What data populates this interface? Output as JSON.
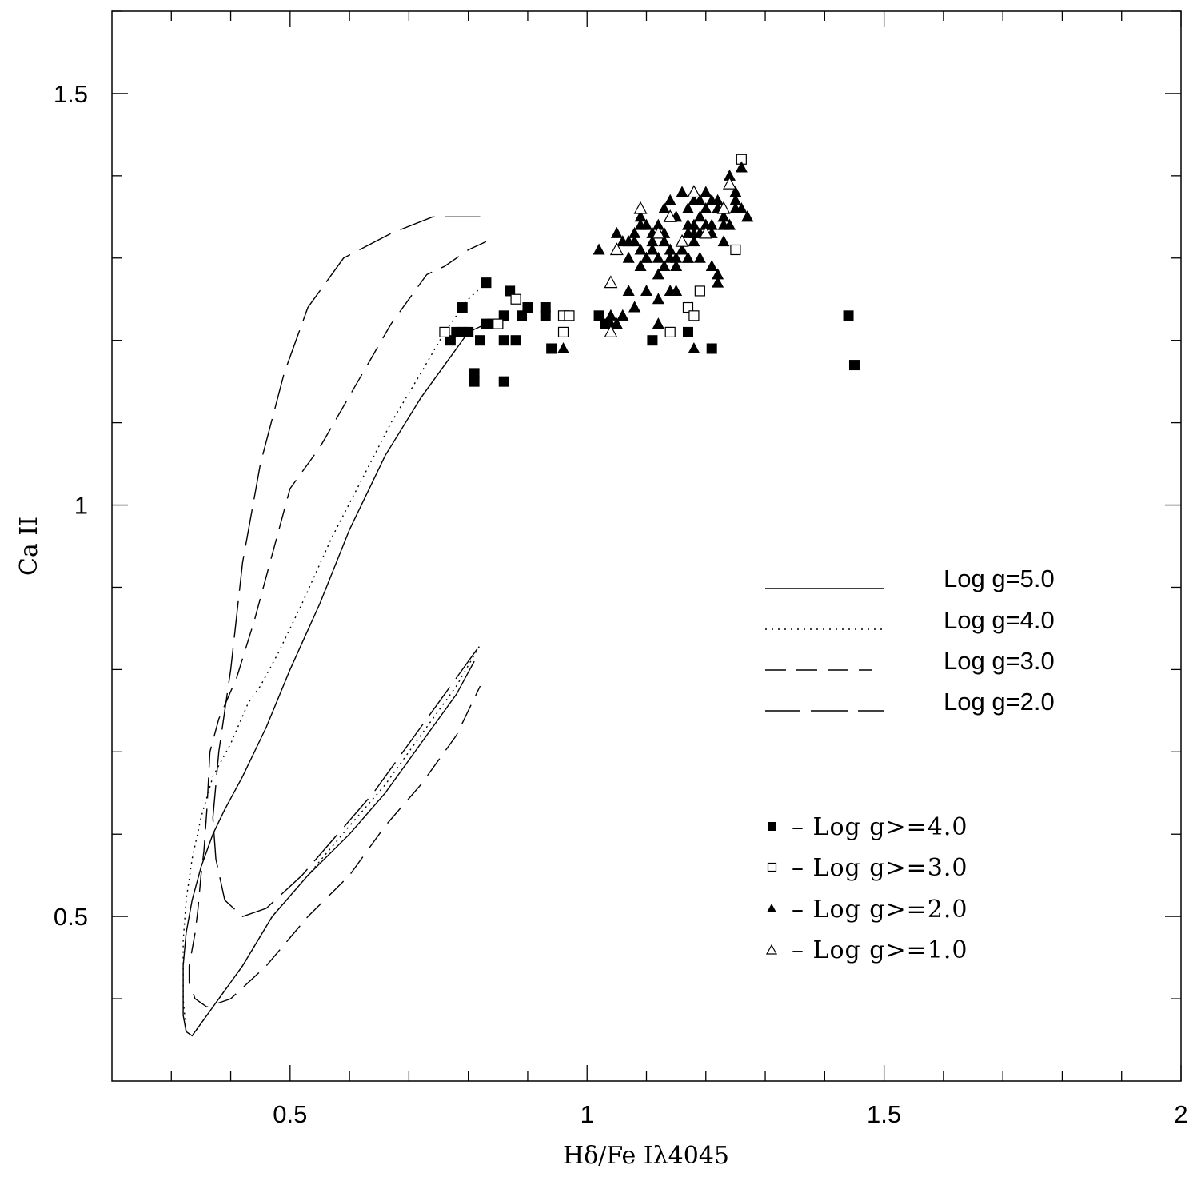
{
  "chart_data": {
    "type": "scatter",
    "xlabel": "Hδ/Fe Iλ4045",
    "ylabel": "Ca II",
    "xlim": [
      0.2,
      2.0
    ],
    "ylim": [
      0.3,
      1.6
    ],
    "x_ticks": [
      0.5,
      1,
      1.5,
      2
    ],
    "x_tick_labels": [
      "0.5",
      "1",
      "1.5",
      "2"
    ],
    "y_ticks": [
      0.5,
      1,
      1.5
    ],
    "y_tick_labels": [
      "0.5",
      "1",
      "1.5"
    ],
    "grid": false,
    "line_legend": [
      {
        "label": "Log g=5.0",
        "dash": "solid"
      },
      {
        "label": "Log g=4.0",
        "dash": "dotted"
      },
      {
        "label": "Log g=3.0",
        "dash": "dashed"
      },
      {
        "label": "Log g=2.0",
        "dash": "long-dashed"
      }
    ],
    "marker_legend": [
      {
        "label": "– Log g>=4.0",
        "marker": "filled-square"
      },
      {
        "label": "– Log g>=3.0",
        "marker": "open-square"
      },
      {
        "label": "– Log g>=2.0",
        "marker": "filled-triangle"
      },
      {
        "label": "– Log g>=1.0",
        "marker": "open-triangle"
      }
    ],
    "curves": [
      {
        "dash": "solid",
        "x": [
          0.83,
          0.8,
          0.77,
          0.72,
          0.66,
          0.6,
          0.55,
          0.5,
          0.46,
          0.42,
          0.39,
          0.37,
          0.35,
          0.335,
          0.325,
          0.32,
          0.32,
          0.325,
          0.335,
          0.35,
          0.38,
          0.42,
          0.47,
          0.53,
          0.6,
          0.66,
          0.72,
          0.78,
          0.81
        ],
        "y": [
          1.22,
          1.21,
          1.18,
          1.13,
          1.06,
          0.97,
          0.88,
          0.8,
          0.73,
          0.67,
          0.63,
          0.6,
          0.56,
          0.52,
          0.48,
          0.44,
          0.38,
          0.36,
          0.355,
          0.37,
          0.4,
          0.44,
          0.5,
          0.55,
          0.6,
          0.65,
          0.71,
          0.77,
          0.81
        ]
      },
      {
        "dash": "dotted",
        "x": [
          0.83,
          0.8,
          0.76,
          0.72,
          0.67,
          0.62,
          0.57,
          0.52,
          0.48,
          0.45,
          0.43,
          0.4,
          0.37,
          0.35,
          0.335,
          0.325,
          0.32,
          0.32,
          0.325,
          0.335,
          0.35,
          0.38,
          0.42,
          0.47,
          0.53,
          0.6,
          0.66,
          0.72,
          0.78,
          0.82
        ],
        "y": [
          1.27,
          1.25,
          1.21,
          1.16,
          1.1,
          1.03,
          0.96,
          0.88,
          0.82,
          0.78,
          0.76,
          0.71,
          0.67,
          0.62,
          0.57,
          0.52,
          0.47,
          0.4,
          0.36,
          0.355,
          0.37,
          0.4,
          0.44,
          0.5,
          0.55,
          0.61,
          0.66,
          0.72,
          0.78,
          0.83
        ]
      },
      {
        "dash": "dashed",
        "x": [
          0.83,
          0.8,
          0.76,
          0.73,
          0.7,
          0.67,
          0.63,
          0.59,
          0.55,
          0.5,
          0.47,
          0.44,
          0.41,
          0.38,
          0.365,
          0.36,
          0.355,
          0.35,
          0.345,
          0.34,
          0.33,
          0.33,
          0.34,
          0.36,
          0.4,
          0.46,
          0.53,
          0.6,
          0.66,
          0.72,
          0.78,
          0.82
        ],
        "y": [
          1.32,
          1.31,
          1.29,
          1.28,
          1.25,
          1.22,
          1.17,
          1.12,
          1.07,
          1.02,
          0.94,
          0.86,
          0.79,
          0.74,
          0.7,
          0.63,
          0.58,
          0.55,
          0.51,
          0.48,
          0.44,
          0.42,
          0.4,
          0.39,
          0.4,
          0.44,
          0.5,
          0.55,
          0.61,
          0.66,
          0.72,
          0.78
        ]
      },
      {
        "dash": "long-dashed",
        "x": [
          0.82,
          0.78,
          0.74,
          0.67,
          0.59,
          0.53,
          0.49,
          0.45,
          0.42,
          0.4,
          0.38,
          0.37,
          0.375,
          0.39,
          0.42,
          0.46,
          0.52,
          0.58,
          0.64,
          0.7,
          0.76,
          0.82
        ],
        "y": [
          1.35,
          1.35,
          1.35,
          1.33,
          1.3,
          1.24,
          1.16,
          1.05,
          0.93,
          0.8,
          0.7,
          0.62,
          0.57,
          0.52,
          0.5,
          0.51,
          0.55,
          0.6,
          0.65,
          0.71,
          0.77,
          0.83
        ]
      }
    ],
    "series": [
      {
        "marker": "filled-square",
        "x": [
          0.79,
          0.81,
          0.83,
          0.77,
          0.78,
          0.79,
          0.8,
          0.82,
          0.83,
          0.84,
          0.85,
          0.86,
          0.86,
          0.87,
          0.88,
          0.89,
          0.9,
          0.93,
          0.93,
          0.94,
          1.02,
          1.03,
          1.11,
          1.17,
          1.17,
          1.21,
          1.44,
          1.45,
          0.81,
          0.86
        ],
        "y": [
          1.24,
          1.16,
          1.27,
          1.2,
          1.21,
          1.21,
          1.21,
          1.2,
          1.22,
          1.22,
          1.22,
          1.23,
          1.2,
          1.26,
          1.2,
          1.23,
          1.24,
          1.23,
          1.24,
          1.19,
          1.23,
          1.22,
          1.2,
          1.24,
          1.21,
          1.19,
          1.23,
          1.17,
          1.15,
          1.15
        ]
      },
      {
        "marker": "open-square",
        "x": [
          0.76,
          0.85,
          0.88,
          0.96,
          0.96,
          0.97,
          1.14,
          1.17,
          1.18,
          1.19,
          1.25,
          1.26
        ],
        "y": [
          1.21,
          1.22,
          1.25,
          1.23,
          1.21,
          1.23,
          1.21,
          1.24,
          1.23,
          1.26,
          1.31,
          1.42
        ]
      },
      {
        "marker": "filled-triangle",
        "x": [
          0.96,
          1.02,
          1.04,
          1.05,
          1.06,
          1.07,
          1.08,
          1.09,
          1.1,
          1.11,
          1.12,
          1.13,
          1.14,
          1.15,
          1.16,
          1.17,
          1.18,
          1.19,
          1.2,
          1.21,
          1.22,
          1.23,
          1.24,
          1.25,
          1.26,
          1.27,
          1.06,
          1.08,
          1.09,
          1.1,
          1.11,
          1.12,
          1.13,
          1.14,
          1.15,
          1.16,
          1.17,
          1.18,
          1.19,
          1.2,
          1.21,
          1.22,
          1.23,
          1.24,
          1.25,
          1.07,
          1.09,
          1.11,
          1.13,
          1.15,
          1.17,
          1.19,
          1.21,
          1.23,
          1.25,
          1.27,
          1.08,
          1.1,
          1.12,
          1.14,
          1.16,
          1.18,
          1.2,
          1.22,
          1.24,
          1.26,
          1.05,
          1.07,
          1.09,
          1.11,
          1.13,
          1.15,
          1.17,
          1.19,
          1.21,
          1.23,
          1.1,
          1.12,
          1.14,
          1.16,
          1.18,
          1.2,
          1.22,
          1.04,
          1.06,
          1.08,
          1.12,
          1.15,
          1.17,
          1.18,
          1.22
        ],
        "y": [
          1.19,
          1.31,
          1.22,
          1.22,
          1.23,
          1.26,
          1.24,
          1.31,
          1.3,
          1.33,
          1.28,
          1.32,
          1.3,
          1.35,
          1.38,
          1.34,
          1.32,
          1.33,
          1.36,
          1.34,
          1.37,
          1.35,
          1.4,
          1.37,
          1.36,
          1.35,
          1.32,
          1.33,
          1.29,
          1.3,
          1.31,
          1.34,
          1.33,
          1.31,
          1.35,
          1.32,
          1.36,
          1.34,
          1.3,
          1.38,
          1.33,
          1.36,
          1.32,
          1.39,
          1.36,
          1.3,
          1.35,
          1.31,
          1.36,
          1.29,
          1.3,
          1.35,
          1.37,
          1.35,
          1.38,
          1.35,
          1.32,
          1.34,
          1.3,
          1.37,
          1.31,
          1.33,
          1.34,
          1.36,
          1.34,
          1.41,
          1.33,
          1.32,
          1.34,
          1.32,
          1.29,
          1.3,
          1.33,
          1.37,
          1.29,
          1.34,
          1.26,
          1.25,
          1.26,
          1.31,
          1.37,
          1.34,
          1.28,
          1.23,
          1.23,
          1.24,
          1.22,
          1.26,
          1.3,
          1.19,
          1.27
        ]
      },
      {
        "marker": "open-triangle",
        "x": [
          1.04,
          1.04,
          1.05,
          1.09,
          1.12,
          1.14,
          1.16,
          1.18,
          1.2,
          1.23,
          1.24
        ],
        "y": [
          1.21,
          1.27,
          1.31,
          1.36,
          1.33,
          1.35,
          1.32,
          1.38,
          1.33,
          1.36,
          1.39
        ]
      }
    ]
  }
}
